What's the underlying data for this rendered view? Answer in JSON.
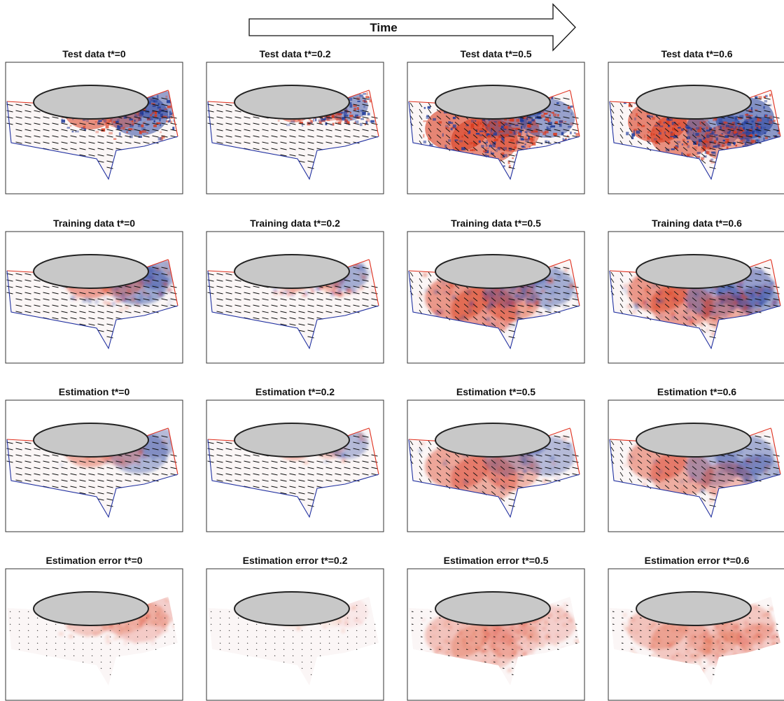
{
  "header": {
    "arrow_label": "Time"
  },
  "rows": [
    {
      "key": "test",
      "field": "test",
      "titles": [
        "Test data t*=0",
        "Test data t*=0.2",
        "Test data t*=0.5",
        "Test data t*=0.6"
      ]
    },
    {
      "key": "training",
      "field": "training",
      "titles": [
        "Training data t*=0",
        "Training data t*=0.2",
        "Training data t*=0.5",
        "Training data t*=0.6"
      ]
    },
    {
      "key": "estimation",
      "field": "estimation",
      "titles": [
        "Estimation t*=0",
        "Estimation t*=0.2",
        "Estimation t*=0.5",
        "Estimation t*=0.6"
      ]
    },
    {
      "key": "error",
      "field": "error",
      "titles": [
        "Estimation error t*=0",
        "Estimation error t*=0.2",
        "Estimation error t*=0.5",
        "Estimation error t*=0.6"
      ]
    }
  ],
  "colors": {
    "positive": "#d93a1e",
    "negative": "#1e3a9a",
    "body_fill": "#c8c8c8",
    "body_stroke": "#222222",
    "upper_boundary": "#e0301e",
    "lower_boundary": "#2030a0",
    "vectors": "#111111"
  },
  "icons": {
    "time_arrow": "right-arrow-icon",
    "body_shape": "ellipse-body-icon"
  }
}
